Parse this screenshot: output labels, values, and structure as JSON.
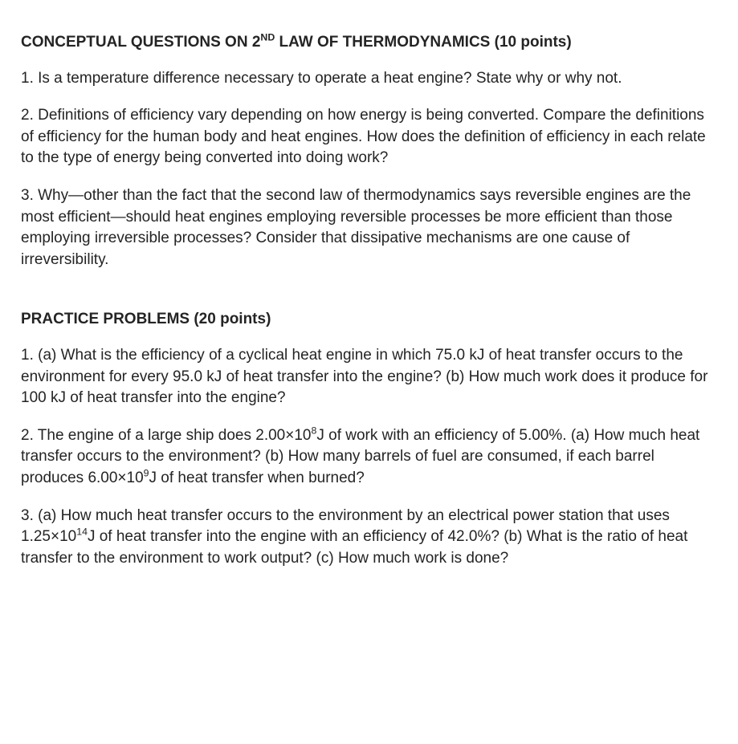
{
  "conceptual": {
    "heading_before": "CONCEPTUAL QUESTIONS ON 2",
    "heading_sup": "ND",
    "heading_after": " LAW OF THERMODYNAMICS (10 points)",
    "q1": "1. Is a temperature difference necessary to operate a heat engine? State why or why not.",
    "q2": "2. Definitions of efficiency vary depending on how energy is being converted. Compare the definitions of efficiency for the human body and heat engines. How does the definition of efficiency in each relate to the type of energy being converted into doing work?",
    "q3": "3. Why—other than the fact that the second law of thermodynamics says reversible engines are the most efficient—should heat engines employing reversible processes be more efficient than those employing irreversible processes? Consider that dissipative mechanisms are one cause of irreversibility."
  },
  "practice": {
    "heading": "PRACTICE PROBLEMS (20 points)",
    "q1": "1. (a) What is the efficiency of a cyclical heat engine in which 75.0 kJ of heat transfer occurs to the environment for every 95.0 kJ of heat transfer into the engine? (b) How much work does it produce for 100 kJ of heat transfer into the engine?",
    "q2_part1": "2. The engine of a large ship does 2.00×10",
    "q2_sup1": "8",
    "q2_part2": "J of work with an efficiency of 5.00%. (a) How much heat transfer occurs to the environment? (b) How many barrels of fuel are consumed, if each barrel produces 6.00×10",
    "q2_sup2": "9",
    "q2_part3": "J of heat transfer when burned?",
    "q3_part1": "3. (a) How much heat transfer occurs to the environment by an electrical power station that uses 1.25×10",
    "q3_sup1": "14",
    "q3_part2": "J of heat transfer into the engine with an efficiency of 42.0%? (b) What is the ratio of heat transfer to the environment to work output? (c) How much work is done?"
  }
}
